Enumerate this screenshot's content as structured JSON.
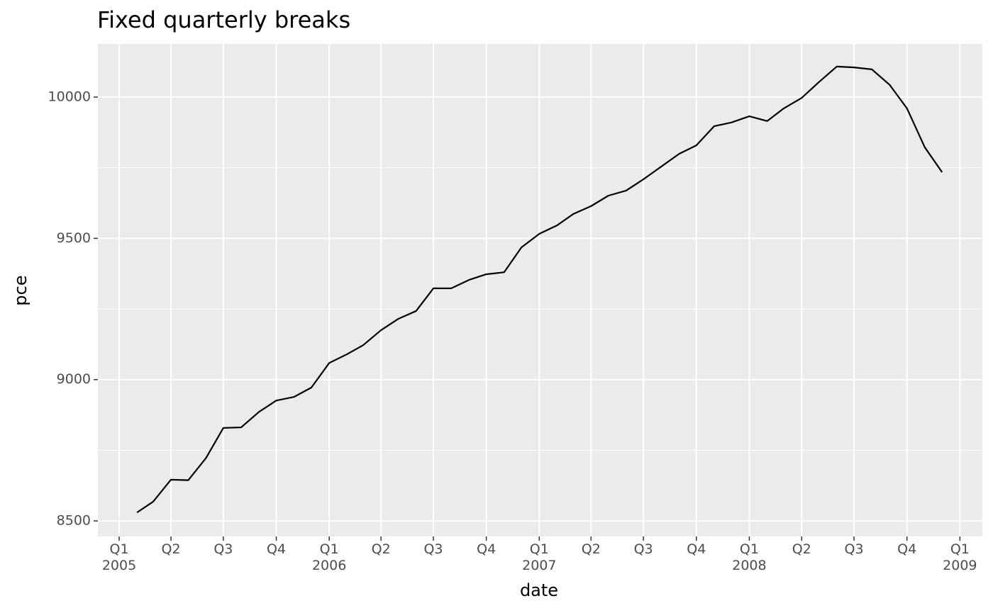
{
  "chart_data": {
    "type": "line",
    "title": "Fixed quarterly breaks",
    "x_label": "date",
    "y_label": "pce",
    "x": [
      "2005-02-01",
      "2005-03-01",
      "2005-04-01",
      "2005-05-01",
      "2005-06-01",
      "2005-07-01",
      "2005-08-01",
      "2005-09-01",
      "2005-10-01",
      "2005-11-01",
      "2005-12-01",
      "2006-01-01",
      "2006-02-01",
      "2006-03-01",
      "2006-04-01",
      "2006-05-01",
      "2006-06-01",
      "2006-07-01",
      "2006-08-01",
      "2006-09-01",
      "2006-10-01",
      "2006-11-01",
      "2006-12-01",
      "2007-01-01",
      "2007-02-01",
      "2007-03-01",
      "2007-04-01",
      "2007-05-01",
      "2007-06-01",
      "2007-07-01",
      "2007-08-01",
      "2007-09-01",
      "2007-10-01",
      "2007-11-01",
      "2007-12-01",
      "2008-01-01",
      "2008-02-01",
      "2008-03-01",
      "2008-04-01",
      "2008-05-01",
      "2008-06-01",
      "2008-07-01",
      "2008-08-01",
      "2008-09-01",
      "2008-10-01",
      "2008-11-01",
      "2008-12-01"
    ],
    "values": [
      8530,
      8568,
      8646,
      8644,
      8723,
      8829,
      8831,
      8886,
      8926,
      8939,
      8972,
      9059,
      9090,
      9122,
      9175,
      9215,
      9243,
      9323,
      9323,
      9353,
      9373,
      9380,
      9468,
      9516,
      9546,
      9586,
      9614,
      9651,
      9669,
      9709,
      9754,
      9799,
      9829,
      9897,
      9910,
      9932,
      9915,
      9960,
      9997,
      10053,
      10108,
      10105,
      10098,
      10043,
      9960,
      9822,
      9734
    ],
    "color": "#000000",
    "xlim": [
      "2004-11-25",
      "2009-02-09"
    ],
    "xticks": [
      {
        "value": "2005-01-01",
        "label": "Q1\n2005"
      },
      {
        "value": "2005-04-01",
        "label": "Q2"
      },
      {
        "value": "2005-07-01",
        "label": "Q3"
      },
      {
        "value": "2005-10-01",
        "label": "Q4"
      },
      {
        "value": "2006-01-01",
        "label": "Q1\n2006"
      },
      {
        "value": "2006-04-01",
        "label": "Q2"
      },
      {
        "value": "2006-07-01",
        "label": "Q3"
      },
      {
        "value": "2006-10-01",
        "label": "Q4"
      },
      {
        "value": "2007-01-01",
        "label": "Q1\n2007"
      },
      {
        "value": "2007-04-01",
        "label": "Q2"
      },
      {
        "value": "2007-07-01",
        "label": "Q3"
      },
      {
        "value": "2007-10-01",
        "label": "Q4"
      },
      {
        "value": "2008-01-01",
        "label": "Q1\n2008"
      },
      {
        "value": "2008-04-01",
        "label": "Q2"
      },
      {
        "value": "2008-07-01",
        "label": "Q3"
      },
      {
        "value": "2008-10-01",
        "label": "Q4"
      },
      {
        "value": "2009-01-01",
        "label": "Q1\n2009"
      }
    ],
    "ylim": [
      8445,
      10188
    ],
    "yticks": [
      8500,
      9000,
      9500,
      10000
    ],
    "y_minor_ticks": [
      8750,
      9250,
      9750
    ],
    "grid": true
  }
}
